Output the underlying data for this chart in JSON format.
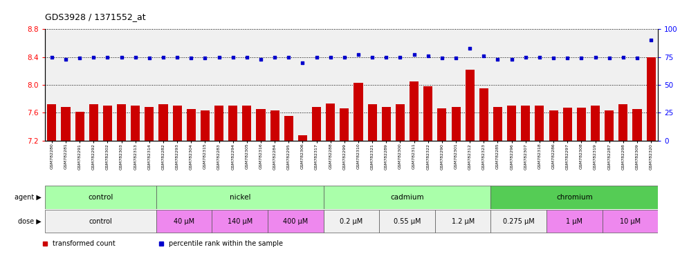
{
  "title": "GDS3928 / 1371552_at",
  "samples": [
    "GSM782280",
    "GSM782281",
    "GSM782291",
    "GSM782292",
    "GSM782302",
    "GSM782303",
    "GSM782313",
    "GSM782314",
    "GSM782282",
    "GSM782293",
    "GSM782304",
    "GSM782315",
    "GSM782283",
    "GSM782294",
    "GSM782305",
    "GSM782316",
    "GSM782284",
    "GSM782295",
    "GSM782306",
    "GSM782317",
    "GSM782288",
    "GSM782299",
    "GSM782310",
    "GSM782321",
    "GSM782289",
    "GSM782300",
    "GSM782311",
    "GSM782322",
    "GSM782290",
    "GSM782301",
    "GSM782312",
    "GSM782323",
    "GSM782285",
    "GSM782296",
    "GSM782307",
    "GSM782318",
    "GSM782286",
    "GSM782297",
    "GSM782308",
    "GSM782319",
    "GSM782287",
    "GSM782298",
    "GSM782309",
    "GSM782320"
  ],
  "bar_values": [
    7.72,
    7.68,
    7.61,
    7.72,
    7.7,
    7.72,
    7.7,
    7.68,
    7.72,
    7.7,
    7.65,
    7.63,
    7.7,
    7.7,
    7.7,
    7.65,
    7.63,
    7.55,
    7.27,
    7.68,
    7.73,
    7.66,
    8.03,
    7.72,
    7.68,
    7.72,
    8.05,
    7.98,
    7.66,
    7.68,
    8.22,
    7.95,
    7.68,
    7.7,
    7.7,
    7.7,
    7.63,
    7.67,
    7.67,
    7.7,
    7.63,
    7.72,
    7.65,
    8.4
  ],
  "percentile_values": [
    75,
    73,
    74,
    75,
    75,
    75,
    75,
    74,
    75,
    75,
    74,
    74,
    75,
    75,
    75,
    73,
    75,
    75,
    70,
    75,
    75,
    75,
    77,
    75,
    75,
    75,
    77,
    76,
    74,
    74,
    83,
    76,
    73,
    73,
    75,
    75,
    74,
    74,
    74,
    75,
    74,
    75,
    74,
    90
  ],
  "bar_color": "#cc0000",
  "dot_color": "#0000cc",
  "ylim_left": [
    7.2,
    8.8
  ],
  "ylim_right": [
    0,
    100
  ],
  "yticks_left": [
    7.2,
    7.6,
    8.0,
    8.4,
    8.8
  ],
  "yticks_right": [
    0,
    25,
    50,
    75,
    100
  ],
  "groups": [
    {
      "label": "control",
      "color": "#aaffaa",
      "start": 0,
      "end": 8
    },
    {
      "label": "nickel",
      "color": "#aaffaa",
      "start": 8,
      "end": 20
    },
    {
      "label": "cadmium",
      "color": "#aaffaa",
      "start": 20,
      "end": 32
    },
    {
      "label": "chromium",
      "color": "#55cc55",
      "start": 32,
      "end": 44
    }
  ],
  "doses": [
    {
      "label": "control",
      "color": "#f0f0f0",
      "start": 0,
      "end": 8
    },
    {
      "label": "40 μM",
      "color": "#ee88ee",
      "start": 8,
      "end": 12
    },
    {
      "label": "140 μM",
      "color": "#ee88ee",
      "start": 12,
      "end": 16
    },
    {
      "label": "400 μM",
      "color": "#ee88ee",
      "start": 16,
      "end": 20
    },
    {
      "label": "0.2 μM",
      "color": "#f0f0f0",
      "start": 20,
      "end": 24
    },
    {
      "label": "0.55 μM",
      "color": "#f0f0f0",
      "start": 24,
      "end": 28
    },
    {
      "label": "1.2 μM",
      "color": "#f0f0f0",
      "start": 28,
      "end": 32
    },
    {
      "label": "0.275 μM",
      "color": "#f0f0f0",
      "start": 32,
      "end": 36
    },
    {
      "label": "1 μM",
      "color": "#ee88ee",
      "start": 36,
      "end": 40
    },
    {
      "label": "10 μM",
      "color": "#ee88ee",
      "start": 40,
      "end": 44
    }
  ],
  "legend_items": [
    {
      "label": "transformed count",
      "color": "#cc0000"
    },
    {
      "label": "percentile rank within the sample",
      "color": "#0000cc"
    }
  ],
  "bg_color": "#f0f0f0"
}
